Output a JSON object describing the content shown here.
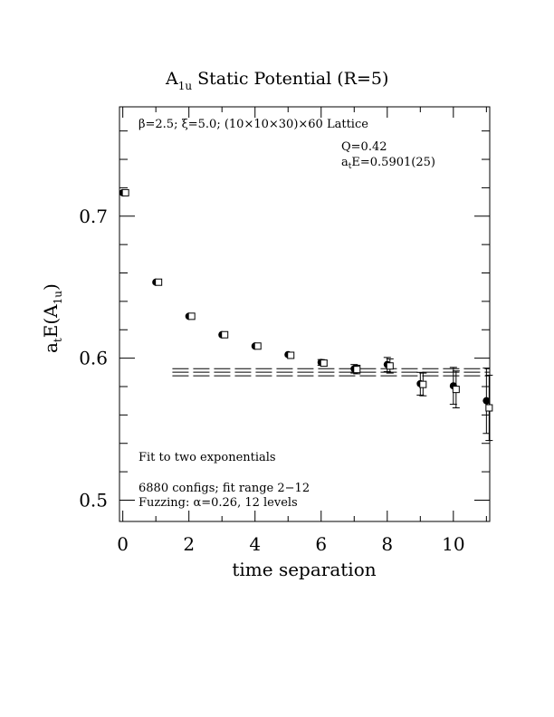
{
  "chart_data": {
    "type": "scatter",
    "title": {
      "prefix": "A",
      "subscript": "1u",
      "suffix": " Static Potential (R=5)"
    },
    "xlabel": "time separation",
    "ylabel": {
      "a": "a",
      "t": "t",
      "e": "E(A",
      "sub": "1u",
      "close": ")"
    },
    "xlim": [
      -0.1,
      11.1
    ],
    "ylim": [
      0.485,
      0.777
    ],
    "x_ticks": [
      0,
      2,
      4,
      6,
      8,
      10
    ],
    "x_tick_labels": [
      "0",
      "2",
      "4",
      "6",
      "8",
      "10"
    ],
    "y_major_ticks": [
      0.5,
      0.6,
      0.7
    ],
    "y_tick_labels": [
      "0.5",
      "0.6",
      "0.7"
    ],
    "annotations": {
      "lattice": "β=2.5; ξ=5.0; (10×10×30)×60 Lattice",
      "q": "Q=0.42",
      "fit_result": {
        "a": "a",
        "t": "t",
        "rest": "E=0.5901(25)"
      },
      "method": "Fit to two exponentials",
      "configs": "6880 configs; fit range 2−12",
      "fuzzing": "Fuzzing: α=0.26, 12 levels"
    },
    "series": [
      {
        "marker": "filled-circle",
        "points": [
          {
            "x": 0,
            "y": 0.7165,
            "err": 0.0008
          },
          {
            "x": 1,
            "y": 0.6535,
            "err": 0.0008
          },
          {
            "x": 2,
            "y": 0.6295,
            "err": 0.0008
          },
          {
            "x": 3,
            "y": 0.6165,
            "err": 0.001
          },
          {
            "x": 4,
            "y": 0.6085,
            "err": 0.0012
          },
          {
            "x": 5,
            "y": 0.6025,
            "err": 0.0015
          },
          {
            "x": 6,
            "y": 0.597,
            "err": 0.002
          },
          {
            "x": 7,
            "y": 0.5925,
            "err": 0.003
          },
          {
            "x": 8,
            "y": 0.5955,
            "err": 0.005
          },
          {
            "x": 9,
            "y": 0.582,
            "err": 0.008
          },
          {
            "x": 10,
            "y": 0.5805,
            "err": 0.013
          },
          {
            "x": 11,
            "y": 0.57,
            "err": 0.023
          }
        ]
      },
      {
        "marker": "open-square",
        "points": [
          {
            "x": 0,
            "y": 0.7165,
            "err": 0.0008
          },
          {
            "x": 1,
            "y": 0.6535,
            "err": 0.0008
          },
          {
            "x": 2,
            "y": 0.6295,
            "err": 0.0008
          },
          {
            "x": 3,
            "y": 0.6165,
            "err": 0.001
          },
          {
            "x": 4,
            "y": 0.6085,
            "err": 0.0012
          },
          {
            "x": 5,
            "y": 0.602,
            "err": 0.0015
          },
          {
            "x": 6,
            "y": 0.5965,
            "err": 0.002
          },
          {
            "x": 7,
            "y": 0.592,
            "err": 0.003
          },
          {
            "x": 8,
            "y": 0.5945,
            "err": 0.005
          },
          {
            "x": 9,
            "y": 0.5815,
            "err": 0.008
          },
          {
            "x": 10,
            "y": 0.578,
            "err": 0.013
          },
          {
            "x": 11,
            "y": 0.565,
            "err": 0.023
          }
        ]
      }
    ],
    "fit": {
      "value": 0.5901,
      "error": 0.0025,
      "x_range": [
        1.5,
        11.1
      ]
    }
  }
}
